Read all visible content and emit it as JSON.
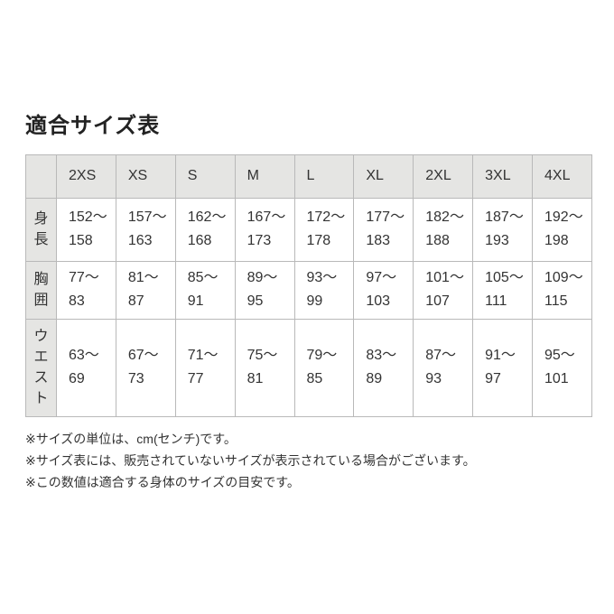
{
  "page": {
    "title": "適合サイズ表"
  },
  "size_table": {
    "corner_label": "",
    "columns": [
      "2XS",
      "XS",
      "S",
      "M",
      "L",
      "XL",
      "2XL",
      "3XL",
      "4XL"
    ],
    "range_separator": "〜",
    "rows": [
      {
        "label": "身長",
        "values": [
          {
            "from": 152,
            "to": 158
          },
          {
            "from": 157,
            "to": 163
          },
          {
            "from": 162,
            "to": 168
          },
          {
            "from": 167,
            "to": 173
          },
          {
            "from": 172,
            "to": 178
          },
          {
            "from": 177,
            "to": 183
          },
          {
            "from": 182,
            "to": 188
          },
          {
            "from": 187,
            "to": 193
          },
          {
            "from": 192,
            "to": 198
          }
        ]
      },
      {
        "label": "胸囲",
        "values": [
          {
            "from": 77,
            "to": 83
          },
          {
            "from": 81,
            "to": 87
          },
          {
            "from": 85,
            "to": 91
          },
          {
            "from": 89,
            "to": 95
          },
          {
            "from": 93,
            "to": 99
          },
          {
            "from": 97,
            "to": 103
          },
          {
            "from": 101,
            "to": 107
          },
          {
            "from": 105,
            "to": 111
          },
          {
            "from": 109,
            "to": 115
          }
        ]
      },
      {
        "label": "ウエスト",
        "values": [
          {
            "from": 63,
            "to": 69
          },
          {
            "from": 67,
            "to": 73
          },
          {
            "from": 71,
            "to": 77
          },
          {
            "from": 75,
            "to": 81
          },
          {
            "from": 79,
            "to": 85
          },
          {
            "from": 83,
            "to": 89
          },
          {
            "from": 87,
            "to": 93
          },
          {
            "from": 91,
            "to": 97
          },
          {
            "from": 95,
            "to": 101
          }
        ]
      }
    ]
  },
  "notes": [
    "※サイズの単位は、cm(センチ)です。",
    "※サイズ表には、販売されていないサイズが表示されている場合がございます。",
    "※この数値は適合する身体のサイズの目安です。"
  ],
  "colors": {
    "header_bg": "#e5e5e3",
    "border": "#b9b9b9",
    "text": "#333333"
  }
}
